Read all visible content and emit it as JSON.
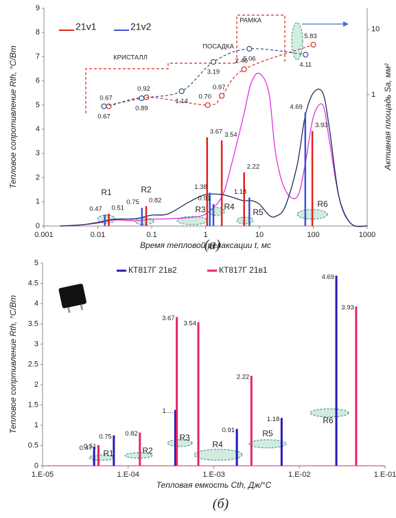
{
  "chart_data": [
    {
      "type": "combo",
      "x_label": "Время тепловой релаксации t,   мс",
      "y_label": "Тепловое сопротивление Rth,   °C/Вт",
      "y2_label": "Активная площадь Sa,  мм²",
      "caption": "(a)",
      "log_x": true,
      "xlim": [
        0.001,
        1000
      ],
      "xticks": [
        0.001,
        0.01,
        0.1,
        1,
        10,
        100,
        1000
      ],
      "ylim": [
        0,
        9
      ],
      "yticks": [
        0,
        1,
        2,
        3,
        4,
        5,
        6,
        7,
        8,
        9
      ],
      "log_y2": true,
      "y2lim": [
        0.01,
        21
      ],
      "y2ticks": [
        1,
        10
      ],
      "curves": {
        "x": [
          0.002,
          0.005,
          0.01,
          0.02,
          0.05,
          0.1,
          0.2,
          0.5,
          1,
          2,
          3,
          5,
          7,
          10,
          15,
          20,
          30,
          50,
          70,
          100,
          150,
          200,
          300,
          500,
          1000
        ],
        "series": [
          {
            "color": "#e22ee2",
            "values": [
              0,
              0.05,
              0.12,
              0.25,
              0.22,
              0.28,
              0.3,
              0.35,
              0.5,
              1.2,
              2.5,
              4.5,
              5.9,
              6.3,
              5.5,
              3.0,
              1.5,
              1.2,
              2.5,
              4.5,
              5.0,
              3.5,
              1.2,
              0.1,
              0
            ]
          },
          {
            "color": "#1b2a55",
            "values": [
              0,
              0.05,
              0.15,
              0.28,
              0.3,
              0.45,
              0.5,
              1.0,
              1.3,
              1.3,
              1.2,
              1.05,
              1.05,
              0.9,
              0.45,
              0.4,
              0.8,
              2.5,
              4.5,
              5.5,
              5.5,
              4.0,
              1.2,
              0.1,
              0
            ]
          }
        ]
      },
      "series": [
        {
          "name": "21v1",
          "color": "#e3211a",
          "x": [
            0.016,
            0.079,
            1.07,
            2.0,
            5.2,
            96
          ],
          "values": [
            0.51,
            0.82,
            3.67,
            3.54,
            2.22,
            3.93
          ]
        },
        {
          "name": "21v2",
          "color": "#3a55d0",
          "x": [
            0.0135,
            0.066,
            1.2,
            1.4,
            6.5,
            71
          ],
          "values": [
            0.47,
            0.75,
            1.38,
            0.91,
            1.18,
            4.69
          ]
        }
      ],
      "area_series": [
        {
          "axis": "y2",
          "color": "#d62a1e",
          "x": [
            0.016,
            0.08,
            1.1,
            2.0,
            5.2,
            100
          ],
          "values": [
            0.67,
            0.92,
            0.7,
            0.97,
            2.46,
            5.83
          ],
          "value_labels": [
            "0.67",
            "0.92",
            "0.70",
            "0.97",
            "2.46",
            "5.83"
          ]
        },
        {
          "axis": "y2",
          "color": "#2d4f86",
          "x": [
            0.013,
            0.065,
            0.36,
            1.4,
            6.5,
            72
          ],
          "values": [
            0.67,
            0.89,
            1.14,
            3.19,
            5.06,
            4.11
          ]
        }
      ],
      "annotations": [
        "РАМКА",
        "ПОСАДКА",
        "КРИСТАЛЛ"
      ],
      "regions": [
        "R1",
        "R2",
        "R3",
        "R4",
        "R5",
        "R6"
      ]
    },
    {
      "type": "bar",
      "x_label": "Тепловая емкость Cth, Дж/°С",
      "y_label": "Тепловое сопртивление Rth,   °C/Вт",
      "caption": "(б)",
      "log_x": true,
      "xlim": [
        1e-05,
        0.1
      ],
      "xticks": [
        {
          "value": 1e-05,
          "label": "1.E-05"
        },
        {
          "value": 0.0001,
          "label": "1.E-04"
        },
        {
          "value": 0.001,
          "label": "1.E-03"
        },
        {
          "value": 0.01,
          "label": "1.E-02"
        },
        {
          "value": 0.1,
          "label": "1.E-01"
        }
      ],
      "ylim": [
        0,
        5
      ],
      "yticks": [
        0,
        0.5,
        1,
        1.5,
        2,
        2.5,
        3,
        3.5,
        4,
        4.5,
        5
      ],
      "series": [
        {
          "name": "КТ817Г 21в2",
          "color": "#2418b8",
          "x": [
            4e-05,
            6.8e-05,
            0.000355,
            0.00186,
            0.0062,
            0.027
          ],
          "values": [
            0.47,
            0.75,
            1.38,
            0.91,
            1.18,
            4.69
          ],
          "value_labels": [
            "0.47",
            "0.75",
            "1....",
            "0.91",
            "1.18",
            "4.69"
          ]
        },
        {
          "name": "КТ817Г 21в1",
          "color": "#e8245c",
          "x": [
            4.5e-05,
            0.000137,
            0.00037,
            0.00066,
            0.00275,
            0.046
          ],
          "values": [
            0.51,
            0.82,
            3.67,
            3.54,
            2.22,
            3.93
          ]
        }
      ],
      "regions": [
        "R1",
        "R2",
        "R3",
        "R4",
        "R5",
        "R6"
      ]
    }
  ]
}
